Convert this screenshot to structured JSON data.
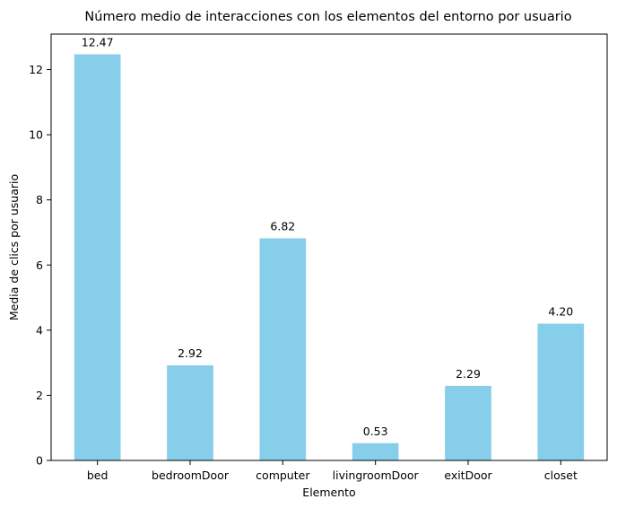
{
  "chart_data": {
    "type": "bar",
    "title": "Número medio de interacciones con los elementos del entorno por usuario",
    "xlabel": "Elemento",
    "ylabel": "Media de clics por usuario",
    "categories": [
      "bed",
      "bedroomDoor",
      "computer",
      "livingroomDoor",
      "exitDoor",
      "closet"
    ],
    "values": [
      12.47,
      2.92,
      6.82,
      0.53,
      2.29,
      4.2
    ],
    "data_labels": [
      "12.47",
      "2.92",
      "6.82",
      "0.53",
      "2.29",
      "4.20"
    ],
    "ylim": [
      0,
      13.09
    ],
    "yticks": [
      0,
      2,
      4,
      6,
      8,
      10,
      12
    ],
    "bar_color": "#87CEEB",
    "grid": false,
    "legend": "none"
  }
}
